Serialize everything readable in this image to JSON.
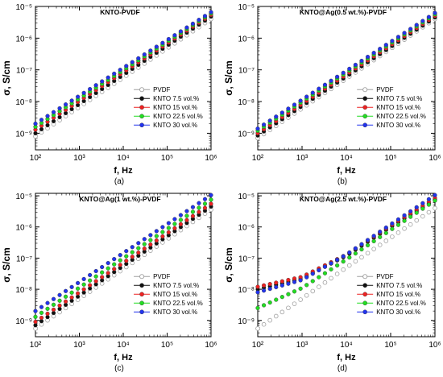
{
  "figure": {
    "panel_captions": [
      "(a)",
      "(b)",
      "(c)",
      "(d)"
    ]
  },
  "colors": {
    "PVDF": "#a0a0a0",
    "KNTO 7.5 vol.%": "#111111",
    "KNTO 15 vol.%": "#ee2222",
    "KNTO 22.5 vol.%": "#22dd22",
    "KNTO 30 vol.%": "#2233ee"
  },
  "chart_data": [
    {
      "type": "scatter",
      "title": "KNTO-PVDF",
      "caption": "(a)",
      "xlabel": "f, Hz",
      "ylabel": "σ, S/cm",
      "xscale": "log",
      "yscale": "log",
      "xlim": [
        100,
        1000000
      ],
      "ylim": [
        3e-10,
        1e-05
      ],
      "xticks": [
        100,
        1000,
        10000,
        100000,
        1000000
      ],
      "xtick_labels": [
        "10²",
        "10³",
        "10⁴",
        "10⁵",
        "10⁶"
      ],
      "yticks": [
        1e-09,
        1e-08,
        1e-07,
        1e-06,
        1e-05
      ],
      "ytick_labels": [
        "10⁻⁹",
        "10⁻⁸",
        "10⁻⁷",
        "10⁻⁶",
        "10⁻⁵"
      ],
      "legend": "bottom-right",
      "series": [
        {
          "name": "PVDF",
          "marker": "open-circle",
          "x": [
            100,
            1000000
          ],
          "y": [
            8e-10,
            4e-06
          ]
        },
        {
          "name": "KNTO 7.5 vol.%",
          "marker": "filled-circle",
          "x": [
            100,
            1000000
          ],
          "y": [
            1e-09,
            4.8e-06
          ]
        },
        {
          "name": "KNTO 15 vol.%",
          "marker": "filled-circle",
          "x": [
            100,
            1000000
          ],
          "y": [
            1.3e-09,
            5.4e-06
          ]
        },
        {
          "name": "KNTO 22.5 vol.%",
          "marker": "filled-circle",
          "x": [
            100,
            1000000
          ],
          "y": [
            1.6e-09,
            6e-06
          ]
        },
        {
          "name": "KNTO 30 vol.%",
          "marker": "filled-circle",
          "x": [
            100,
            1000000
          ],
          "y": [
            2e-09,
            6.6e-06
          ]
        }
      ]
    },
    {
      "type": "scatter",
      "title": "KNTO@Ag(0.5 wt.%)-PVDF",
      "caption": "(b)",
      "xlabel": "f, Hz",
      "ylabel": "σ, S/cm",
      "xscale": "log",
      "yscale": "log",
      "xlim": [
        100,
        1000000
      ],
      "ylim": [
        3e-10,
        1e-05
      ],
      "xticks": [
        100,
        1000,
        10000,
        100000,
        1000000
      ],
      "xtick_labels": [
        "10²",
        "10³",
        "10⁴",
        "10⁵",
        "10⁶"
      ],
      "yticks": [
        1e-09,
        1e-08,
        1e-07,
        1e-06,
        1e-05
      ],
      "ytick_labels": [
        "10⁻⁹",
        "10⁻⁸",
        "10⁻⁷",
        "10⁻⁶",
        "10⁻⁵"
      ],
      "legend": "bottom-right",
      "series": [
        {
          "name": "PVDF",
          "marker": "open-circle",
          "x": [
            100,
            1000000
          ],
          "y": [
            7e-10,
            4e-06
          ]
        },
        {
          "name": "KNTO 7.5 vol.%",
          "marker": "filled-circle",
          "x": [
            100,
            1000000
          ],
          "y": [
            8.5e-10,
            4.5e-06
          ]
        },
        {
          "name": "KNTO 15 vol.%",
          "marker": "filled-circle",
          "x": [
            100,
            1000000
          ],
          "y": [
            1e-09,
            5e-06
          ]
        },
        {
          "name": "KNTO 22.5 vol.%",
          "marker": "filled-circle",
          "x": [
            100,
            1000000
          ],
          "y": [
            1.2e-09,
            5.6e-06
          ]
        },
        {
          "name": "KNTO 30 vol.%",
          "marker": "filled-circle",
          "x": [
            100,
            1000000
          ],
          "y": [
            1.4e-09,
            6.2e-06
          ]
        }
      ]
    },
    {
      "type": "scatter",
      "title": "KNTO@Ag(1 wt.%)-PVDF",
      "caption": "(c)",
      "xlabel": "f, Hz",
      "ylabel": "σ, S/cm",
      "xscale": "log",
      "yscale": "log",
      "xlim": [
        100,
        1000000
      ],
      "ylim": [
        3e-10,
        1.2e-05
      ],
      "xticks": [
        100,
        1000,
        10000,
        100000,
        1000000
      ],
      "xtick_labels": [
        "10²",
        "10³",
        "10⁴",
        "10⁵",
        "10⁶"
      ],
      "yticks": [
        1e-09,
        1e-08,
        1e-07,
        1e-06,
        1e-05
      ],
      "ytick_labels": [
        "10⁻⁹",
        "10⁻⁸",
        "10⁻⁷",
        "10⁻⁶",
        "10⁻⁵"
      ],
      "legend": "bottom-right",
      "series": [
        {
          "name": "PVDF",
          "marker": "open-circle",
          "x": [
            100,
            1000000
          ],
          "y": [
            5.5e-10,
            3.6e-06
          ]
        },
        {
          "name": "KNTO 7.5 vol.%",
          "marker": "filled-circle",
          "x": [
            100,
            1000000
          ],
          "y": [
            7e-10,
            4.5e-06
          ]
        },
        {
          "name": "KNTO 15 vol.%",
          "marker": "filled-circle",
          "x": [
            100,
            1000000
          ],
          "y": [
            9e-10,
            5.5e-06
          ]
        },
        {
          "name": "KNTO 22.5 vol.%",
          "marker": "filled-circle",
          "x": [
            100,
            1000000
          ],
          "y": [
            1.3e-09,
            7.5e-06
          ]
        },
        {
          "name": "KNTO 30 vol.%",
          "marker": "filled-circle",
          "x": [
            100,
            1000000
          ],
          "y": [
            2e-09,
            1.05e-05
          ]
        }
      ]
    },
    {
      "type": "scatter",
      "title": "KNTO@Ag(2.5 wt.%)-PVDF",
      "caption": "(d)",
      "xlabel": "f, Hz",
      "ylabel": "σ, S/cm",
      "xscale": "log",
      "yscale": "log",
      "xlim": [
        100,
        1000000
      ],
      "ylim": [
        3e-10,
        1.2e-05
      ],
      "xticks": [
        100,
        1000,
        10000,
        100000,
        1000000
      ],
      "xtick_labels": [
        "10²",
        "10³",
        "10⁴",
        "10⁵",
        "10⁶"
      ],
      "yticks": [
        1e-09,
        1e-08,
        1e-07,
        1e-06,
        1e-05
      ],
      "ytick_labels": [
        "10⁻⁹",
        "10⁻⁸",
        "10⁻⁷",
        "10⁻⁶",
        "10⁻⁵"
      ],
      "legend": "bottom-right",
      "series": [
        {
          "name": "PVDF",
          "marker": "open-circle",
          "x": [
            100,
            1000,
            10000,
            100000,
            1000000
          ],
          "y": [
            5.5e-10,
            5e-09,
            5e-08,
            4.5e-07,
            4e-06
          ]
        },
        {
          "name": "KNTO 7.5 vol.%",
          "marker": "filled-circle",
          "x": [
            100,
            1000,
            10000,
            100000,
            1000000
          ],
          "y": [
            1e-08,
            2.2e-08,
            1.2e-07,
            1e-06,
            7.5e-06
          ]
        },
        {
          "name": "KNTO 15 vol.%",
          "marker": "filled-circle",
          "x": [
            100,
            1000,
            10000,
            100000,
            1000000
          ],
          "y": [
            1.2e-08,
            2.5e-08,
            1.3e-07,
            1.1e-06,
            8.5e-06
          ]
        },
        {
          "name": "KNTO 22.5 vol.%",
          "marker": "filled-circle",
          "x": [
            100,
            1000,
            10000,
            100000,
            1000000
          ],
          "y": [
            2.5e-09,
            1.1e-08,
            9e-08,
            8e-07,
            7e-06
          ]
        },
        {
          "name": "KNTO 30 vol.%",
          "marker": "filled-circle",
          "x": [
            100,
            1000,
            10000,
            100000,
            1000000
          ],
          "y": [
            8e-09,
            2e-08,
            1.3e-07,
            1.2e-06,
            1.05e-05
          ]
        }
      ]
    }
  ]
}
